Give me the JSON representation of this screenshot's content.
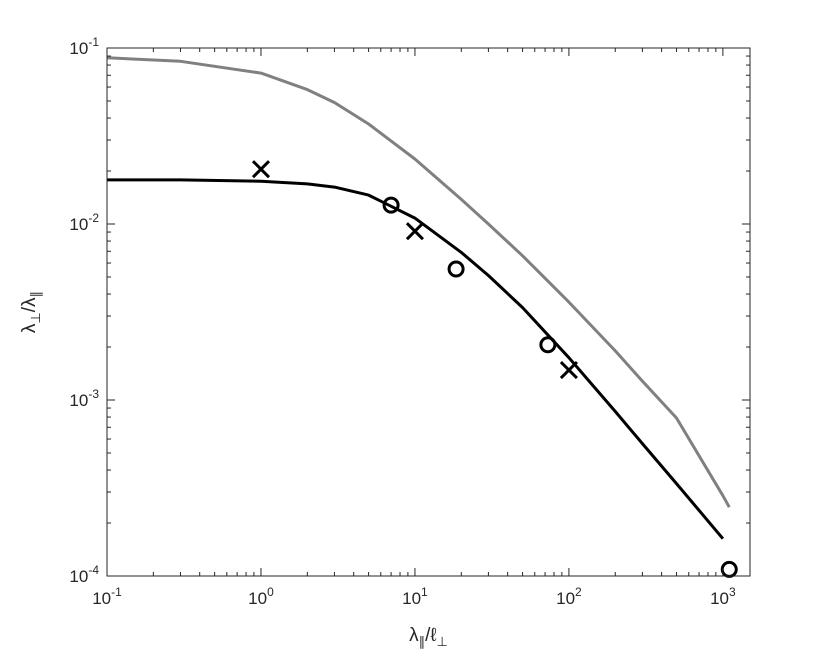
{
  "chart_data": {
    "type": "line",
    "title": "",
    "xlabel": "λ∥/ℓ⊥",
    "ylabel": "λ⊥/λ∥",
    "x_scale": "log",
    "y_scale": "log",
    "xlim": [
      0.1,
      1500
    ],
    "ylim": [
      0.0001,
      0.1
    ],
    "grid": false,
    "x_ticks": [
      {
        "value": 0.1,
        "base": "10",
        "exp": "-1"
      },
      {
        "value": 1,
        "base": "10",
        "exp": "0"
      },
      {
        "value": 10,
        "base": "10",
        "exp": "1"
      },
      {
        "value": 100,
        "base": "10",
        "exp": "2"
      },
      {
        "value": 1000,
        "base": "10",
        "exp": "3"
      }
    ],
    "y_ticks": [
      {
        "value": 0.0001,
        "base": "10",
        "exp": "-4"
      },
      {
        "value": 0.001,
        "base": "10",
        "exp": "-3"
      },
      {
        "value": 0.01,
        "base": "10",
        "exp": "-2"
      },
      {
        "value": 0.1,
        "base": "10",
        "exp": "-1"
      }
    ],
    "series": [
      {
        "kind": "line",
        "color": "#808080",
        "x": [
          0.1,
          0.3,
          1,
          2,
          3,
          5,
          10,
          20,
          30,
          50,
          100,
          200,
          300,
          500,
          1000,
          1100
        ],
        "y": [
          0.088,
          0.084,
          0.072,
          0.058,
          0.049,
          0.037,
          0.0234,
          0.0138,
          0.01,
          0.0066,
          0.0036,
          0.0019,
          0.00128,
          0.00079,
          0.000286,
          0.000246
        ]
      },
      {
        "kind": "line",
        "color": "#000000",
        "x": [
          0.1,
          0.3,
          1,
          2,
          3,
          5,
          10,
          20,
          30,
          50,
          100,
          200,
          300,
          500,
          1000
        ],
        "y": [
          0.0178,
          0.0178,
          0.0175,
          0.0169,
          0.0162,
          0.0146,
          0.0108,
          0.0069,
          0.0051,
          0.00335,
          0.00174,
          0.00086,
          0.000565,
          0.000335,
          0.000163
        ]
      },
      {
        "kind": "scatter",
        "marker": "x",
        "color": "#000000",
        "x": [
          1,
          10,
          100
        ],
        "y": [
          0.0205,
          0.0091,
          0.00148
        ]
      },
      {
        "kind": "scatter",
        "marker": "o",
        "color": "#000000",
        "x": [
          7,
          18.5,
          73,
          1100
        ],
        "y": [
          0.0128,
          0.00555,
          0.00206,
          0.000109
        ]
      }
    ]
  }
}
